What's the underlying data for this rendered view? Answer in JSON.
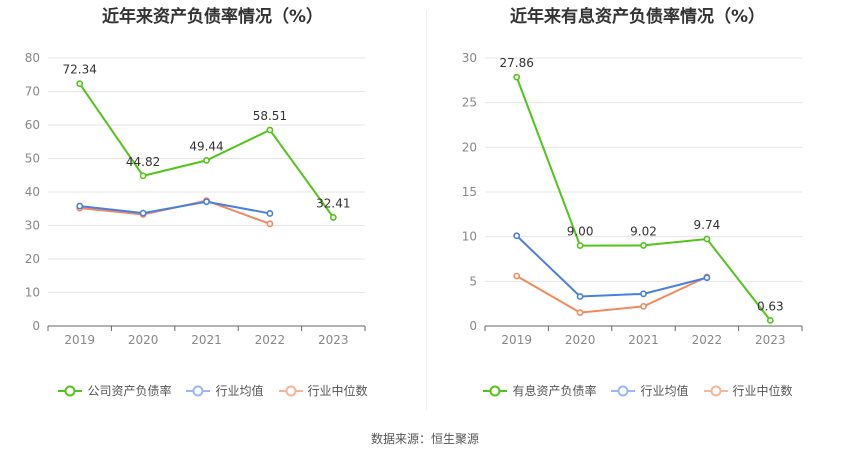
{
  "source": "数据来源：恒生聚源",
  "chart_data": [
    {
      "type": "line",
      "title": "近年来资产负债率情况（%）",
      "categories": [
        "2019",
        "2020",
        "2021",
        "2022",
        "2023"
      ],
      "ylim": [
        0,
        80
      ],
      "yticks": [
        0,
        10,
        20,
        30,
        40,
        50,
        60,
        70,
        80
      ],
      "grid": true,
      "legend_position": "bottom",
      "series": [
        {
          "name": "公司资产负债率",
          "color": "#52c41a",
          "values": [
            72.34,
            44.82,
            49.44,
            58.51,
            32.41
          ],
          "labels": [
            "72.34",
            "44.82",
            "49.44",
            "58.51",
            "32.41"
          ]
        },
        {
          "name": "行业均值",
          "color": "#4a7fe0",
          "values": [
            35.8,
            33.7,
            37.1,
            33.6,
            null
          ]
        },
        {
          "name": "行业中位数",
          "color": "#f08a5d",
          "values": [
            35.2,
            33.3,
            37.4,
            30.5,
            null
          ]
        }
      ]
    },
    {
      "type": "line",
      "title": "近年来有息资产负债率情况（%）",
      "categories": [
        "2019",
        "2020",
        "2021",
        "2022",
        "2023"
      ],
      "ylim": [
        0,
        30
      ],
      "yticks": [
        0,
        5,
        10,
        15,
        20,
        25,
        30
      ],
      "grid": true,
      "legend_position": "bottom",
      "series": [
        {
          "name": "有息资产负债率",
          "color": "#52c41a",
          "values": [
            27.86,
            9.0,
            9.02,
            9.74,
            0.63
          ],
          "labels": [
            "27.86",
            "9.00",
            "9.02",
            "9.74",
            "0.63"
          ]
        },
        {
          "name": "行业均值",
          "color": "#4a7fe0",
          "values": [
            10.1,
            3.3,
            3.6,
            5.4,
            null
          ]
        },
        {
          "name": "行业中位数",
          "color": "#f08a5d",
          "values": [
            5.6,
            1.5,
            2.2,
            5.5,
            null
          ]
        }
      ]
    }
  ]
}
